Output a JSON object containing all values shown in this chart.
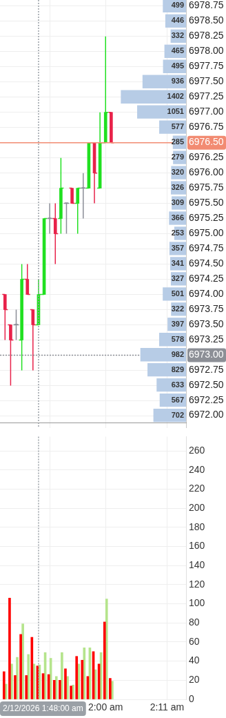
{
  "chart_data": [
    {
      "type": "candlestick",
      "x": [
        1.7,
        1.7167,
        1.7333,
        1.75,
        1.7667,
        1.7833,
        1.8,
        1.8167,
        1.8333,
        1.85,
        1.8667,
        1.8833,
        1.9,
        1.9167,
        1.9333,
        1.95,
        1.9667,
        1.9833,
        2,
        2.0167
      ],
      "ohlc": [
        [
          6974.0,
          6974.0,
          6973.25,
          6973.75
        ],
        [
          6973.5,
          6973.5,
          6972.5,
          6973.25
        ],
        [
          6973.5,
          6973.75,
          6973.25,
          6973.5
        ],
        [
          6973.25,
          6974.5,
          6972.75,
          6974.25
        ],
        [
          6974.25,
          6974.5,
          6974.0,
          6974.0
        ],
        [
          6973.75,
          6973.75,
          6972.75,
          6973.5
        ],
        [
          6973.5,
          6974.25,
          6973.5,
          6974.0
        ],
        [
          6974.0,
          6975.25,
          6974.0,
          6975.25
        ],
        [
          6975.25,
          6975.5,
          6975.0,
          6975.25
        ],
        [
          6975.25,
          6975.5,
          6974.5,
          6975.0
        ],
        [
          6975.25,
          6976.25,
          6975.0,
          6975.75
        ],
        [
          6975.5,
          6975.5,
          6975.0,
          6975.5
        ],
        [
          6975.75,
          6975.75,
          6975.5,
          6975.5
        ],
        [
          6975.5,
          6975.75,
          6975.0,
          6975.75
        ],
        [
          6975.75,
          6976.0,
          6975.25,
          6975.75
        ],
        [
          6975.75,
          6976.5,
          6975.75,
          6976.5
        ],
        [
          6976.5,
          6976.5,
          6975.5,
          6976.0
        ],
        [
          6975.75,
          6977.0,
          6975.75,
          6976.5
        ],
        [
          6976.5,
          6978.25,
          6976.5,
          6977.0
        ],
        [
          6977.0,
          6977.0,
          6976.5,
          6976.5
        ]
      ],
      "colors": [
        "#e8224a",
        "#e8224a",
        "#8b8e97",
        "#21e021",
        "#e8224a",
        "#e8224a",
        "#21e021",
        "#21e021",
        "#8b8e97",
        "#e8224a",
        "#21e021",
        "#8b8e97",
        "#e8224a",
        "#21e021",
        "#8b8e97",
        "#21e021",
        "#e8224a",
        "#21e021",
        "#21e021",
        "#e8224a"
      ],
      "xlim": [
        1.685,
        2.24
      ],
      "xticks": [
        1.8333,
        2,
        2.1833
      ],
      "ylim": [
        6971.8,
        6978.85
      ],
      "yticks": [
        6972,
        6972.25,
        6972.5,
        6972.75,
        6973,
        6973.25,
        6973.5,
        6973.75,
        6974,
        6974.25,
        6974.5,
        6974.75,
        6975,
        6975.25,
        6975.5,
        6975.75,
        6976,
        6976.25,
        6976.5,
        6976.75,
        6977,
        6977.25,
        6977.5,
        6977.75,
        6978,
        6978.25,
        6978.5,
        6978.75
      ],
      "grid": true,
      "tick_labels": false,
      "ref_lines": [
        {
          "axis": "y",
          "value": 6976.5,
          "color": "#f28b72",
          "line_style": "solid"
        },
        {
          "axis": "y",
          "value": 6973.0,
          "color": "#8c8f96",
          "line_style": "dotted"
        },
        {
          "axis": "x",
          "value": 1.8,
          "color": "#9aa0a6",
          "line_style": "dotted"
        }
      ]
    },
    {
      "type": "bar",
      "orientation": "horizontal",
      "categories": [
        "6978.75",
        "6978.50",
        "6978.25",
        "6978.00",
        "6977.75",
        "6977.50",
        "6977.25",
        "6977.00",
        "6976.75",
        "6976.50",
        "6976.25",
        "6976.00",
        "6975.75",
        "6975.50",
        "6975.25",
        "6975.00",
        "6974.75",
        "6974.50",
        "6974.25",
        "6974.00",
        "6973.75",
        "6973.50",
        "6973.25",
        "6973.00",
        "6972.75",
        "6972.50",
        "6972.25",
        "6972.00"
      ],
      "values": [
        499,
        446,
        332,
        465,
        495,
        936,
        1402,
        1051,
        577,
        285,
        279,
        320,
        326,
        309,
        366,
        253,
        357,
        341,
        327,
        501,
        322,
        397,
        578,
        982,
        829,
        633,
        567,
        702
      ],
      "color": "#b7cce6",
      "xlim": [
        4000,
        0
      ],
      "data_labels": true,
      "tick_labels": "y"
    },
    {
      "type": "bar",
      "x": [
        1.7,
        1.7167,
        1.7333,
        1.75,
        1.7667,
        1.7833,
        1.8,
        1.8167,
        1.8333,
        1.85,
        1.8667,
        1.8833,
        1.9,
        1.9167,
        1.9333,
        1.95,
        1.9667,
        1.9833,
        2,
        2.0167
      ],
      "series": [
        {
          "color": "#ff0000",
          "values": [
            29,
            106,
            25,
            68,
            25,
            65,
            35,
            27,
            26,
            20,
            20,
            32,
            14,
            45,
            41,
            24,
            50,
            37,
            81,
            22
          ]
        },
        {
          "color": "#b5e48c",
          "values": [
            16,
            37,
            44,
            79,
            47,
            37,
            36,
            49,
            43,
            24,
            49,
            24,
            15,
            37,
            54,
            54,
            31,
            49,
            105,
            19
          ]
        }
      ],
      "xlim": [
        1.685,
        2.24
      ],
      "xticks": [
        {
          "value": 1.8333,
          "label": null
        },
        {
          "value": 2,
          "label": "2:00 am"
        },
        {
          "value": 2.1833,
          "label": "2:11 am"
        }
      ],
      "ylim": [
        0,
        275
      ],
      "yticks": [
        0,
        20,
        40,
        60,
        80,
        100,
        120,
        140,
        160,
        180,
        200,
        220,
        240,
        260
      ],
      "grid": true,
      "ref_lines": [
        {
          "axis": "x",
          "value": 1.8,
          "label": "2/12/2026 1:48:00 am",
          "color": "#9aa0a6",
          "line_style": "dotted"
        }
      ]
    }
  ]
}
